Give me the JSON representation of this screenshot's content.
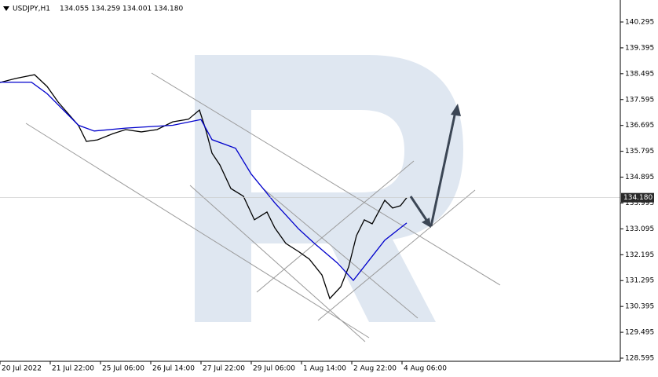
{
  "chart_data": {
    "type": "line",
    "title": "USDJPY,H1",
    "header_values": [
      "134.055",
      "134.259",
      "134.001",
      "134.180"
    ],
    "xlim": [
      0,
      395
    ],
    "xticks": [
      {
        "value": 0,
        "label": "20 Jul 2022"
      },
      {
        "value": 32,
        "label": "21 Jul 22:00"
      },
      {
        "value": 64,
        "label": "25 Jul 06:00"
      },
      {
        "value": 96,
        "label": "26 Jul 14:00"
      },
      {
        "value": 128,
        "label": "27 Jul 22:00"
      },
      {
        "value": 160,
        "label": "29 Jul 06:00"
      },
      {
        "value": 192,
        "label": "1 Aug 14:00"
      },
      {
        "value": 224,
        "label": "2 Aug 22:00"
      },
      {
        "value": 256,
        "label": "4 Aug 06:00"
      }
    ],
    "ylim": [
      128.486,
      141.06
    ],
    "yticks": [
      140.295,
      139.395,
      138.495,
      137.595,
      136.695,
      135.795,
      134.895,
      133.995,
      133.095,
      132.195,
      131.295,
      130.395,
      129.495,
      128.595
    ],
    "last_price": {
      "value": 134.18,
      "label": "134.180"
    },
    "series": [
      {
        "color": "#000000",
        "x": [
          0,
          10,
          22,
          30,
          37,
          50,
          55,
          62,
          72,
          80,
          90,
          100,
          110,
          120,
          127,
          131,
          135,
          140,
          147,
          155,
          162,
          170,
          175,
          182,
          190,
          197,
          205,
          210,
          217,
          222,
          227,
          232,
          237,
          245,
          250,
          255,
          259
        ],
        "values": [
          138.19,
          138.33,
          138.46,
          138.05,
          137.51,
          136.69,
          136.14,
          136.19,
          136.41,
          136.55,
          136.47,
          136.55,
          136.82,
          136.91,
          137.23,
          136.55,
          135.73,
          135.32,
          134.5,
          134.23,
          133.41,
          133.68,
          133.13,
          132.59,
          132.31,
          132.04,
          131.49,
          130.67,
          131.08,
          131.77,
          132.86,
          133.41,
          133.27,
          134.09,
          133.82,
          133.9,
          134.18
        ]
      },
      {
        "color": "#0000cc",
        "x": [
          0,
          20,
          30,
          50,
          60,
          80,
          110,
          128,
          135,
          150,
          160,
          175,
          190,
          200,
          215,
          225,
          235,
          245,
          259
        ],
        "values": [
          138.2,
          138.2,
          137.8,
          136.7,
          136.5,
          136.6,
          136.7,
          136.9,
          136.2,
          135.9,
          135.0,
          134.0,
          133.1,
          132.6,
          131.9,
          131.3,
          132.0,
          132.7,
          133.3
        ]
      }
    ]
  }
}
